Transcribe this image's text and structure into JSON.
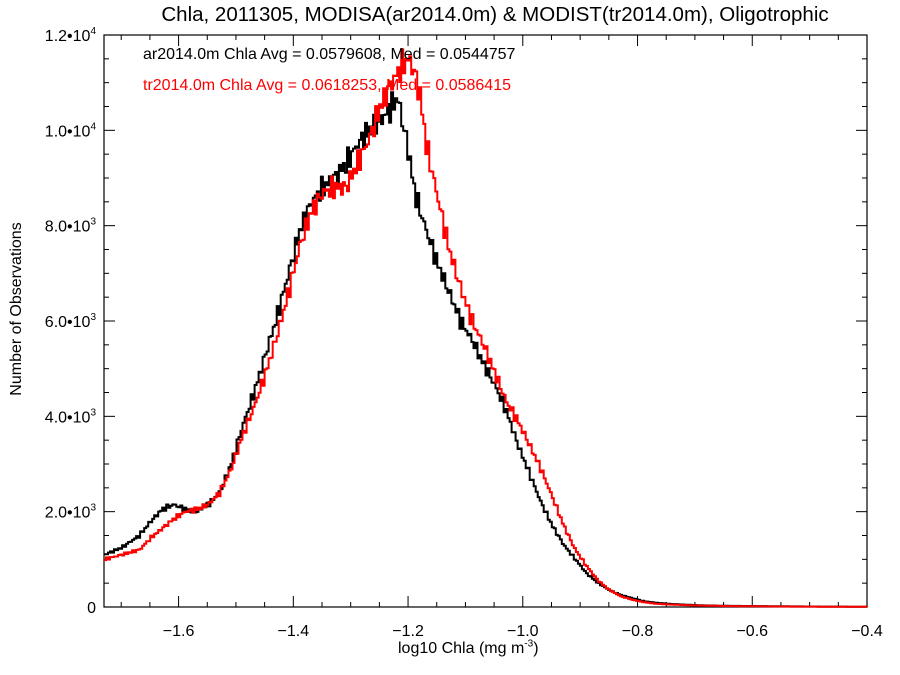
{
  "chart_data": {
    "type": "line",
    "step": true,
    "title": "Chla, 2011305, MODISA(ar2014.0m) & MODIST(tr2014.0m), Oligotrophic",
    "xlabel": {
      "text": "log10 Chla (mg m",
      "sup": "-3",
      "suffix": ")"
    },
    "ylabel": "Number of Observations",
    "xlim": [
      -1.73,
      -0.4
    ],
    "ylim": [
      0,
      12000
    ],
    "xticks": [
      -1.6,
      -1.4,
      -1.2,
      -1.0,
      -0.8,
      -0.6,
      -0.4
    ],
    "xtick_labels": [
      "−1.6",
      "−1.4",
      "−1.2",
      "−1.0",
      "−0.8",
      "−0.6",
      "−0.4"
    ],
    "yticks": [
      {
        "value": 0,
        "mant": "0",
        "exp": ""
      },
      {
        "value": 2000,
        "mant": "2.0•10",
        "exp": "3"
      },
      {
        "value": 4000,
        "mant": "4.0•10",
        "exp": "3"
      },
      {
        "value": 6000,
        "mant": "6.0•10",
        "exp": "3"
      },
      {
        "value": 8000,
        "mant": "8.0•10",
        "exp": "3"
      },
      {
        "value": 10000,
        "mant": "1.0•10",
        "exp": "4"
      },
      {
        "value": 12000,
        "mant": "1.2•10",
        "exp": "4"
      }
    ],
    "grid": false,
    "legend": "top-left annotations",
    "annotations": [
      {
        "text": "ar2014.0m Chla Avg = 0.0579608, Med = 0.0544757",
        "color": "#000000"
      },
      {
        "text": "tr2014.0m Chla Avg = 0.0618253, Med = 0.0586415",
        "color": "#ff0000"
      }
    ],
    "series": [
      {
        "color": "#000000",
        "x": [
          -1.73,
          -1.7,
          -1.67,
          -1.65,
          -1.63,
          -1.61,
          -1.59,
          -1.57,
          -1.55,
          -1.53,
          -1.51,
          -1.49,
          -1.47,
          -1.45,
          -1.43,
          -1.41,
          -1.39,
          -1.37,
          -1.35,
          -1.33,
          -1.31,
          -1.29,
          -1.27,
          -1.25,
          -1.23,
          -1.22,
          -1.21,
          -1.2,
          -1.19,
          -1.17,
          -1.15,
          -1.13,
          -1.11,
          -1.09,
          -1.07,
          -1.05,
          -1.03,
          -1.01,
          -0.99,
          -0.97,
          -0.95,
          -0.93,
          -0.91,
          -0.89,
          -0.87,
          -0.85,
          -0.83,
          -0.81,
          -0.79,
          -0.77,
          -0.75,
          -0.73,
          -0.71,
          -0.69,
          -0.67,
          -0.65,
          -0.6,
          -0.55,
          -0.5,
          -0.45,
          -0.4
        ],
        "y": [
          1100,
          1250,
          1500,
          1800,
          2050,
          2150,
          2050,
          2000,
          2150,
          2400,
          3000,
          3800,
          4500,
          5300,
          6100,
          7000,
          7900,
          8500,
          8800,
          9000,
          9300,
          9700,
          10000,
          10200,
          10500,
          10700,
          10100,
          9500,
          8700,
          7900,
          7200,
          6600,
          6000,
          5600,
          5100,
          4650,
          4100,
          3400,
          2800,
          2200,
          1700,
          1300,
          1000,
          700,
          500,
          350,
          250,
          180,
          120,
          90,
          70,
          55,
          45,
          35,
          30,
          25,
          20,
          15,
          10,
          8,
          5
        ]
      },
      {
        "color": "#ff0000",
        "x": [
          -1.73,
          -1.7,
          -1.67,
          -1.65,
          -1.63,
          -1.61,
          -1.59,
          -1.57,
          -1.55,
          -1.53,
          -1.51,
          -1.49,
          -1.47,
          -1.45,
          -1.43,
          -1.41,
          -1.39,
          -1.37,
          -1.35,
          -1.33,
          -1.31,
          -1.29,
          -1.27,
          -1.25,
          -1.23,
          -1.21,
          -1.2,
          -1.19,
          -1.18,
          -1.17,
          -1.15,
          -1.13,
          -1.11,
          -1.09,
          -1.07,
          -1.05,
          -1.03,
          -1.01,
          -0.99,
          -0.97,
          -0.95,
          -0.93,
          -0.91,
          -0.89,
          -0.87,
          -0.85,
          -0.83,
          -0.81,
          -0.79,
          -0.77,
          -0.75,
          -0.73,
          -0.71,
          -0.69,
          -0.67,
          -0.65,
          -0.6,
          -0.55,
          -0.5,
          -0.45,
          -0.4
        ],
        "y": [
          1000,
          1100,
          1200,
          1450,
          1650,
          1850,
          2000,
          2050,
          2150,
          2400,
          2900,
          3600,
          4200,
          4900,
          5700,
          6600,
          7600,
          8300,
          8700,
          8800,
          8800,
          9300,
          9800,
          10500,
          11000,
          11400,
          11500,
          11200,
          10700,
          9700,
          8600,
          7500,
          6700,
          6000,
          5500,
          4900,
          4300,
          3900,
          3400,
          2900,
          2300,
          1700,
          1200,
          850,
          550,
          350,
          220,
          150,
          100,
          70,
          55,
          45,
          35,
          30,
          25,
          20,
          15,
          10,
          8,
          5,
          3
        ]
      }
    ]
  }
}
